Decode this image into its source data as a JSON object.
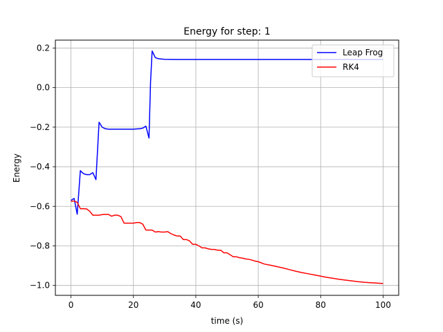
{
  "chart_data": {
    "type": "line",
    "title": "Energy for step: 1",
    "xlabel": "time (s)",
    "ylabel": "Energy",
    "xlim": [
      -5,
      105
    ],
    "ylim": [
      -1.05,
      0.24
    ],
    "xticks": [
      0,
      20,
      40,
      60,
      80,
      100
    ],
    "yticks": [
      -1.0,
      -0.8,
      -0.6,
      -0.4,
      -0.2,
      0.0,
      0.2
    ],
    "xtick_labels": [
      "0",
      "20",
      "40",
      "60",
      "80",
      "100"
    ],
    "ytick_labels": [
      "−1.0",
      "−0.8",
      "−0.6",
      "−0.4",
      "−0.2",
      "0.0",
      "0.2"
    ],
    "grid": true,
    "legend_position": "top-right",
    "series": [
      {
        "name": "Leap Frog",
        "color": "#0000ff",
        "x": [
          0,
          1,
          2,
          3,
          4,
          5,
          6,
          7,
          8,
          9,
          10,
          11,
          12,
          14,
          16,
          18,
          20,
          22,
          23,
          24,
          25,
          25.5,
          26,
          27,
          28,
          30,
          35,
          40,
          50,
          60,
          70,
          80,
          90,
          100
        ],
        "y": [
          -0.57,
          -0.56,
          -0.64,
          -0.42,
          -0.435,
          -0.44,
          -0.44,
          -0.43,
          -0.465,
          -0.175,
          -0.2,
          -0.208,
          -0.21,
          -0.21,
          -0.21,
          -0.21,
          -0.21,
          -0.208,
          -0.205,
          -0.195,
          -0.255,
          0.03,
          0.185,
          0.152,
          0.146,
          0.143,
          0.142,
          0.142,
          0.142,
          0.142,
          0.142,
          0.142,
          0.142,
          0.142
        ]
      },
      {
        "name": "RK4",
        "color": "#ff0000",
        "x": [
          0,
          1,
          2,
          3,
          4,
          5,
          6,
          7,
          8,
          9,
          10,
          11,
          12,
          13,
          14,
          15,
          16,
          17,
          18,
          19,
          20,
          21,
          22,
          23,
          24,
          25,
          26,
          27,
          28,
          29,
          30,
          31,
          32,
          33,
          34,
          35,
          36,
          37,
          38,
          39,
          40,
          41,
          42,
          43,
          44,
          45,
          46,
          47,
          48,
          49,
          50,
          51,
          52,
          53,
          54,
          55,
          56,
          57,
          58,
          59,
          60,
          62,
          64,
          66,
          68,
          70,
          72,
          74,
          76,
          78,
          80,
          82,
          84,
          86,
          88,
          90,
          92,
          94,
          96,
          98,
          100
        ],
        "y": [
          -0.575,
          -0.573,
          -0.58,
          -0.612,
          -0.612,
          -0.613,
          -0.625,
          -0.645,
          -0.645,
          -0.645,
          -0.642,
          -0.641,
          -0.641,
          -0.65,
          -0.645,
          -0.645,
          -0.652,
          -0.685,
          -0.685,
          -0.685,
          -0.685,
          -0.682,
          -0.682,
          -0.69,
          -0.72,
          -0.72,
          -0.72,
          -0.73,
          -0.728,
          -0.73,
          -0.73,
          -0.728,
          -0.738,
          -0.745,
          -0.75,
          -0.75,
          -0.768,
          -0.768,
          -0.775,
          -0.792,
          -0.792,
          -0.8,
          -0.81,
          -0.81,
          -0.815,
          -0.818,
          -0.818,
          -0.822,
          -0.822,
          -0.835,
          -0.835,
          -0.845,
          -0.855,
          -0.855,
          -0.86,
          -0.862,
          -0.866,
          -0.868,
          -0.872,
          -0.877,
          -0.88,
          -0.892,
          -0.898,
          -0.905,
          -0.912,
          -0.92,
          -0.928,
          -0.935,
          -0.941,
          -0.947,
          -0.953,
          -0.959,
          -0.964,
          -0.969,
          -0.973,
          -0.977,
          -0.981,
          -0.984,
          -0.986,
          -0.988,
          -0.99
        ]
      }
    ]
  }
}
